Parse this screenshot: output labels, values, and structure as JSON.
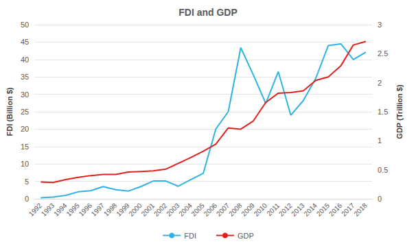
{
  "chart_data": {
    "type": "line",
    "title": "FDI and GDP",
    "y_label": "FDI (Billion $)",
    "y2_label": "GDP (Trillion $)",
    "categories": [
      "1992",
      "1993",
      "1994",
      "1995",
      "1996",
      "1997",
      "1998",
      "1999",
      "2000",
      "2001",
      "2002",
      "2003",
      "2004",
      "2005",
      "2006",
      "2007",
      "2008",
      "2009",
      "2010",
      "2011",
      "2012",
      "2013",
      "2014",
      "2015",
      "2016",
      "2017",
      "2018"
    ],
    "series": [
      {
        "name": "FDI",
        "color": "#2fb3e3",
        "marker": "none",
        "line_style": "solid",
        "values": [
          0.3,
          0.5,
          1,
          2,
          2.3,
          3.5,
          2.6,
          2.2,
          3.5,
          5.1,
          5.1,
          3.6,
          5.5,
          7.3,
          20,
          25,
          43.4,
          35.6,
          27.4,
          36.5,
          24,
          28.2,
          34.6,
          44,
          44.5,
          40,
          42.1
        ]
      },
      {
        "name": "GDP",
        "color": "#e3211c",
        "marker": "none",
        "line_style": "solid",
        "axis": "y2",
        "values": [
          0.29,
          0.28,
          0.33,
          0.37,
          0.4,
          0.42,
          0.42,
          0.46,
          0.47,
          0.48,
          0.51,
          0.61,
          0.71,
          0.82,
          0.94,
          1.22,
          1.2,
          1.34,
          1.66,
          1.82,
          1.83,
          1.86,
          2.04,
          2.1,
          2.29,
          2.65,
          2.71
        ]
      }
    ],
    "ylim": [
      0,
      50
    ],
    "yticks": [
      0,
      5,
      10,
      15,
      20,
      25,
      30,
      35,
      40,
      45,
      50
    ],
    "y2lim": [
      0,
      3
    ],
    "y2ticks": [
      0,
      0.5,
      1,
      1.5,
      2,
      2.5,
      3
    ],
    "grid": true,
    "legend": "bottom"
  }
}
